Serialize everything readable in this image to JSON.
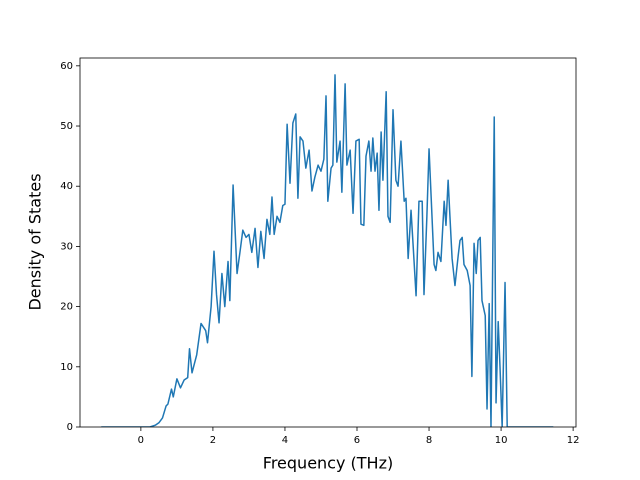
{
  "chart_data": {
    "type": "line",
    "xlabel": "Frequency (THz)",
    "ylabel": "Density of States",
    "color": "#1f77b4",
    "x": [
      -1.1,
      0.25,
      0.4,
      0.5,
      0.6,
      0.7,
      0.75,
      0.85,
      0.9,
      1.0,
      1.1,
      1.2,
      1.3,
      1.35,
      1.42,
      1.55,
      1.67,
      1.8,
      1.85,
      1.95,
      2.03,
      2.1,
      2.17,
      2.25,
      2.33,
      2.42,
      2.47,
      2.56,
      2.67,
      2.75,
      2.83,
      2.92,
      3.0,
      3.08,
      3.17,
      3.25,
      3.33,
      3.42,
      3.5,
      3.58,
      3.64,
      3.7,
      3.78,
      3.86,
      3.94,
      4.0,
      4.06,
      4.14,
      4.22,
      4.3,
      4.36,
      4.42,
      4.5,
      4.58,
      4.67,
      4.75,
      4.83,
      4.92,
      5.0,
      5.08,
      5.14,
      5.19,
      5.28,
      5.33,
      5.39,
      5.44,
      5.53,
      5.58,
      5.67,
      5.72,
      5.81,
      5.89,
      5.97,
      6.06,
      6.11,
      6.19,
      6.25,
      6.33,
      6.39,
      6.44,
      6.5,
      6.56,
      6.61,
      6.67,
      6.72,
      6.81,
      6.86,
      6.92,
      7.0,
      7.08,
      7.14,
      7.22,
      7.31,
      7.36,
      7.42,
      7.5,
      7.56,
      7.64,
      7.72,
      7.81,
      7.86,
      7.94,
      8.0,
      8.06,
      8.14,
      8.19,
      8.25,
      8.33,
      8.42,
      8.47,
      8.53,
      8.58,
      8.64,
      8.72,
      8.81,
      8.86,
      8.92,
      8.97,
      9.06,
      9.14,
      9.19,
      9.25,
      9.31,
      9.36,
      9.42,
      9.47,
      9.56,
      9.61,
      9.67,
      9.72,
      9.81,
      9.86,
      9.92,
      9.97,
      10.03,
      10.11,
      10.17,
      10.25,
      11.45
    ],
    "values": [
      0,
      0,
      0.3,
      0.7,
      1.5,
      3.5,
      3.8,
      6.3,
      5,
      8,
      6.5,
      7.8,
      8.2,
      13,
      9,
      12,
      17.2,
      16,
      14,
      20,
      29.2,
      22,
      17.3,
      25.5,
      20,
      27.5,
      21,
      40.2,
      25.5,
      29,
      32.7,
      31.5,
      32,
      29,
      33,
      26.5,
      32.5,
      28,
      34.5,
      32,
      38.2,
      32,
      35,
      34,
      36.8,
      37,
      50.3,
      40.5,
      50.5,
      52,
      38,
      48.2,
      47.5,
      43,
      46,
      39.2,
      41.5,
      43.5,
      42.5,
      44.5,
      55,
      37.5,
      43,
      43.5,
      58.5,
      44,
      47.5,
      39,
      57,
      43.5,
      46,
      35.5,
      47.5,
      47.8,
      33.7,
      33.5,
      45,
      47.5,
      42.5,
      48,
      42.5,
      45.5,
      36,
      49,
      41,
      55.7,
      35,
      34,
      52.7,
      41,
      40,
      47.5,
      37.5,
      38,
      28,
      36,
      30,
      21.8,
      37.5,
      37.5,
      22,
      35,
      46.2,
      38,
      27,
      26,
      29,
      27.5,
      37.5,
      33.5,
      41,
      35,
      28,
      23.5,
      28.5,
      31,
      31.5,
      27,
      26,
      23.5,
      8.4,
      30.5,
      25.5,
      31,
      31.5,
      21,
      18.5,
      3,
      20.5,
      0,
      51.5,
      4,
      17.5,
      10,
      0,
      24,
      0,
      0,
      0
    ],
    "xlim": [
      -1.69,
      12.08
    ],
    "ylim": [
      0,
      61.3
    ],
    "xticks": [
      0,
      2,
      4,
      6,
      8,
      10,
      12
    ],
    "yticks": [
      0,
      10,
      20,
      30,
      40,
      50,
      60
    ]
  }
}
